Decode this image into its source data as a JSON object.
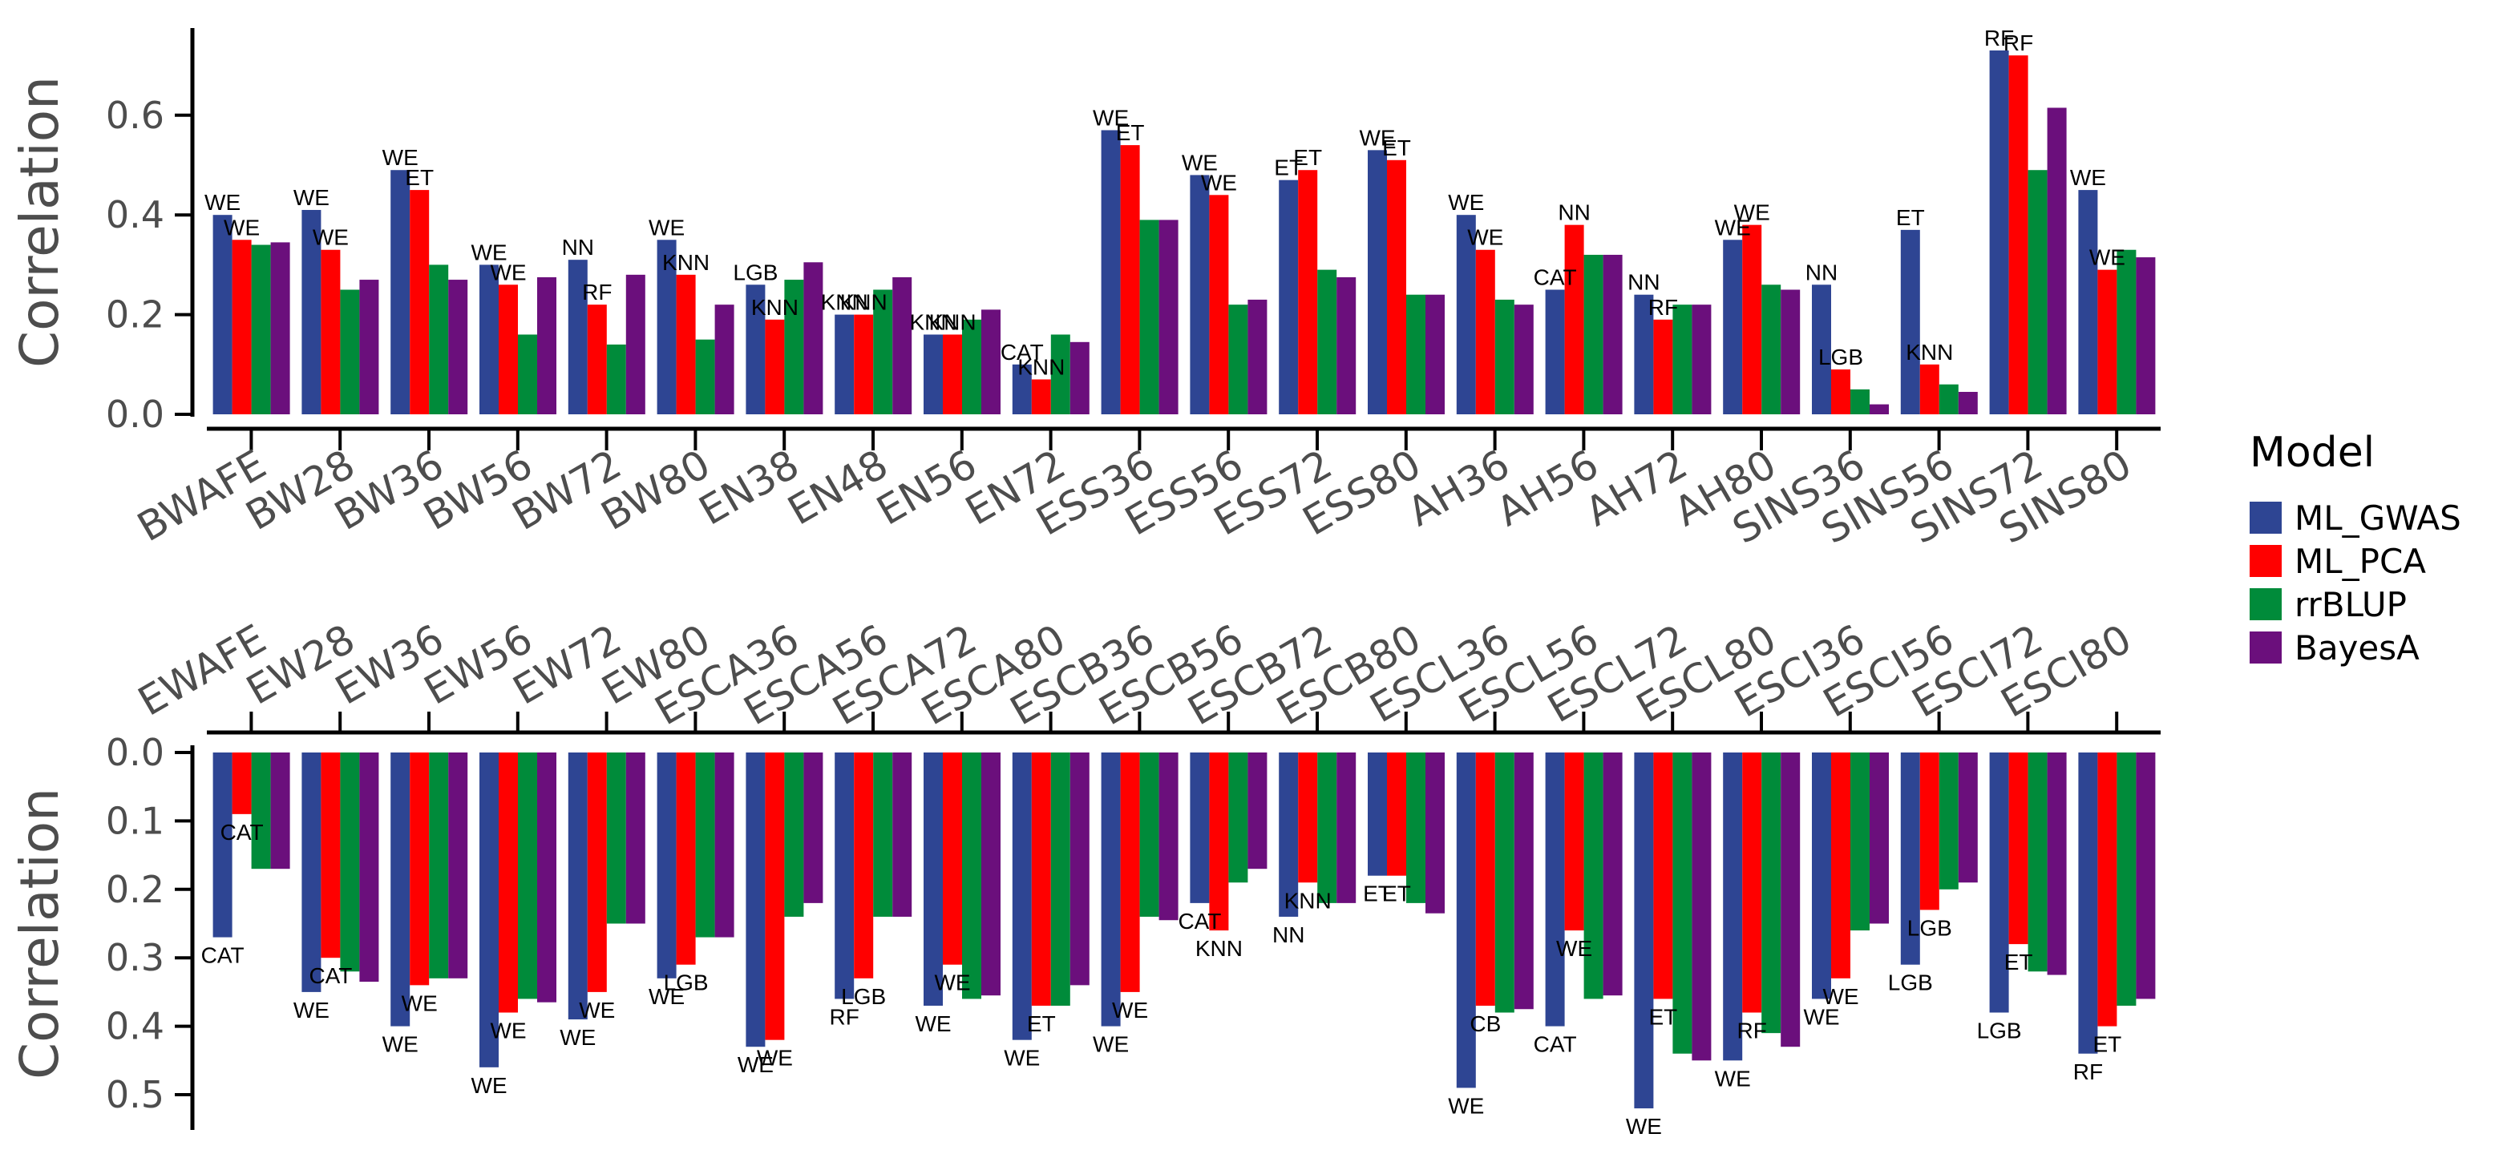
{
  "colors": {
    "ML_GWAS": "#2e4593",
    "ML_PCA": "#ff0000",
    "rrBLUP": "#008b3a",
    "BayesA": "#6b0f7c"
  },
  "legend": {
    "title": "Model",
    "items": [
      "ML_GWAS",
      "ML_PCA",
      "rrBLUP",
      "BayesA"
    ]
  },
  "chart_data": [
    {
      "type": "bar",
      "ylabel": "Correlation",
      "ylim": [
        -0.03,
        0.76
      ],
      "yticks": [
        "0.0",
        "0.2",
        "0.4",
        "0.6"
      ],
      "legend_position": "right",
      "categories": [
        "BWAFE",
        "BW28",
        "BW36",
        "BW56",
        "BW72",
        "BW80",
        "EN38",
        "EN48",
        "EN56",
        "EN72",
        "ESS36",
        "ESS56",
        "ESS72",
        "ESS80",
        "AH36",
        "AH56",
        "AH72",
        "AH80",
        "SINS36",
        "SINS56",
        "SINS72",
        "SINS80"
      ],
      "series": [
        {
          "name": "ML_GWAS",
          "values": [
            0.4,
            0.41,
            0.49,
            0.3,
            0.31,
            0.35,
            0.26,
            0.2,
            0.16,
            0.1,
            0.57,
            0.48,
            0.47,
            0.53,
            0.4,
            0.25,
            0.24,
            0.35,
            0.26,
            0.37,
            0.73,
            0.45
          ]
        },
        {
          "name": "ML_PCA",
          "values": [
            0.35,
            0.33,
            0.45,
            0.26,
            0.22,
            0.28,
            0.19,
            0.2,
            0.16,
            0.07,
            0.54,
            0.44,
            0.49,
            0.51,
            0.33,
            0.38,
            0.19,
            0.38,
            0.09,
            0.1,
            0.72,
            0.29
          ]
        },
        {
          "name": "rrBLUP",
          "values": [
            0.34,
            0.25,
            0.3,
            0.16,
            0.14,
            0.15,
            0.27,
            0.25,
            0.19,
            0.16,
            0.39,
            0.22,
            0.29,
            0.24,
            0.23,
            0.32,
            0.22,
            0.26,
            0.05,
            0.06,
            0.49,
            0.33
          ]
        },
        {
          "name": "BayesA",
          "values": [
            0.345,
            0.27,
            0.27,
            0.275,
            0.28,
            0.22,
            0.305,
            0.275,
            0.21,
            0.145,
            0.39,
            0.23,
            0.275,
            0.24,
            0.22,
            0.32,
            0.22,
            0.25,
            0.02,
            0.045,
            0.615,
            0.315
          ]
        }
      ],
      "annotations": [
        {
          "category": "BWAFE",
          "series": "ML_GWAS",
          "label": "WE"
        },
        {
          "category": "BWAFE",
          "series": "ML_PCA",
          "label": "WE"
        },
        {
          "category": "BW28",
          "series": "ML_GWAS",
          "label": "WE"
        },
        {
          "category": "BW28",
          "series": "ML_PCA",
          "label": "WE"
        },
        {
          "category": "BW36",
          "series": "ML_GWAS",
          "label": "WE"
        },
        {
          "category": "BW36",
          "series": "ML_PCA",
          "label": "ET"
        },
        {
          "category": "BW56",
          "series": "ML_GWAS",
          "label": "WE"
        },
        {
          "category": "BW56",
          "series": "ML_PCA",
          "label": "WE"
        },
        {
          "category": "BW72",
          "series": "ML_GWAS",
          "label": "NN"
        },
        {
          "category": "BW72",
          "series": "ML_PCA",
          "label": "RF"
        },
        {
          "category": "BW80",
          "series": "ML_GWAS",
          "label": "WE"
        },
        {
          "category": "BW80",
          "series": "ML_PCA",
          "label": "KNN"
        },
        {
          "category": "EN38",
          "series": "ML_GWAS",
          "label": "LGB"
        },
        {
          "category": "EN38",
          "series": "ML_PCA",
          "label": "KNN"
        },
        {
          "category": "EN48",
          "series": "ML_GWAS",
          "label": "KNN"
        },
        {
          "category": "EN48",
          "series": "ML_PCA",
          "label": "KNN"
        },
        {
          "category": "EN56",
          "series": "ML_GWAS",
          "label": "KNN"
        },
        {
          "category": "EN56",
          "series": "ML_PCA",
          "label": "KNN"
        },
        {
          "category": "EN72",
          "series": "ML_GWAS",
          "label": "CAT"
        },
        {
          "category": "EN72",
          "series": "ML_PCA",
          "label": "KNN"
        },
        {
          "category": "ESS36",
          "series": "ML_GWAS",
          "label": "WE"
        },
        {
          "category": "ESS36",
          "series": "ML_PCA",
          "label": "ET"
        },
        {
          "category": "ESS56",
          "series": "ML_GWAS",
          "label": "WE"
        },
        {
          "category": "ESS56",
          "series": "ML_PCA",
          "label": "WE"
        },
        {
          "category": "ESS72",
          "series": "ML_GWAS",
          "label": "ET"
        },
        {
          "category": "ESS72",
          "series": "ML_PCA",
          "label": "ET"
        },
        {
          "category": "ESS80",
          "series": "ML_GWAS",
          "label": "WE"
        },
        {
          "category": "ESS80",
          "series": "ML_PCA",
          "label": "ET"
        },
        {
          "category": "AH36",
          "series": "ML_GWAS",
          "label": "WE"
        },
        {
          "category": "AH36",
          "series": "ML_PCA",
          "label": "WE"
        },
        {
          "category": "AH56",
          "series": "ML_GWAS",
          "label": "CAT"
        },
        {
          "category": "AH56",
          "series": "ML_PCA",
          "label": "NN"
        },
        {
          "category": "AH72",
          "series": "ML_GWAS",
          "label": "NN"
        },
        {
          "category": "AH72",
          "series": "ML_PCA",
          "label": "RF"
        },
        {
          "category": "AH80",
          "series": "ML_GWAS",
          "label": "WE"
        },
        {
          "category": "AH80",
          "series": "ML_PCA",
          "label": "WE"
        },
        {
          "category": "SINS36",
          "series": "ML_GWAS",
          "label": "NN"
        },
        {
          "category": "SINS36",
          "series": "ML_PCA",
          "label": "LGB"
        },
        {
          "category": "SINS56",
          "series": "ML_GWAS",
          "label": "ET"
        },
        {
          "category": "SINS56",
          "series": "ML_PCA",
          "label": "KNN"
        },
        {
          "category": "SINS72",
          "series": "ML_GWAS",
          "label": "RF"
        },
        {
          "category": "SINS72",
          "series": "ML_PCA",
          "label": "RF"
        },
        {
          "category": "SINS80",
          "series": "ML_GWAS",
          "label": "WE"
        },
        {
          "category": "SINS80",
          "series": "ML_PCA",
          "label": "WE"
        }
      ]
    },
    {
      "type": "bar",
      "ylabel": "Correlation",
      "ylim": [
        0.0,
        0.55
      ],
      "yaxis_inverted": true,
      "yticks": [
        "0.0",
        "0.1",
        "0.2",
        "0.3",
        "0.4",
        "0.5"
      ],
      "categories": [
        "EWAFE",
        "EW28",
        "EW36",
        "EW56",
        "EW72",
        "EW80",
        "ESCA36",
        "ESCA56",
        "ESCA72",
        "ESCA80",
        "ESCB36",
        "ESCB56",
        "ESCB72",
        "ESCB80",
        "ESCL36",
        "ESCL56",
        "ESCL72",
        "ESCL80",
        "ESCI36",
        "ESCI56",
        "ESCI72",
        "ESCI80"
      ],
      "series": [
        {
          "name": "ML_GWAS",
          "values": [
            0.27,
            0.35,
            0.4,
            0.46,
            0.39,
            0.33,
            0.43,
            0.36,
            0.37,
            0.42,
            0.4,
            0.22,
            0.24,
            0.18,
            0.49,
            0.4,
            0.52,
            0.45,
            0.36,
            0.31,
            0.38,
            0.44
          ]
        },
        {
          "name": "ML_PCA",
          "values": [
            0.09,
            0.3,
            0.34,
            0.38,
            0.35,
            0.31,
            0.42,
            0.33,
            0.31,
            0.37,
            0.35,
            0.26,
            0.19,
            0.18,
            0.37,
            0.26,
            0.36,
            0.38,
            0.33,
            0.23,
            0.28,
            0.4
          ]
        },
        {
          "name": "rrBLUP",
          "values": [
            0.17,
            0.32,
            0.33,
            0.36,
            0.25,
            0.27,
            0.24,
            0.24,
            0.36,
            0.37,
            0.24,
            0.19,
            0.22,
            0.22,
            0.38,
            0.36,
            0.44,
            0.41,
            0.26,
            0.2,
            0.32,
            0.37
          ]
        },
        {
          "name": "BayesA",
          "values": [
            0.17,
            0.335,
            0.33,
            0.365,
            0.25,
            0.27,
            0.22,
            0.24,
            0.355,
            0.34,
            0.245,
            0.17,
            0.22,
            0.235,
            0.375,
            0.355,
            0.45,
            0.43,
            0.25,
            0.19,
            0.325,
            0.36
          ]
        }
      ],
      "annotations": [
        {
          "category": "EWAFE",
          "series": "ML_GWAS",
          "label": "CAT"
        },
        {
          "category": "EWAFE",
          "series": "ML_PCA",
          "label": "CAT"
        },
        {
          "category": "EW28",
          "series": "ML_GWAS",
          "label": "WE"
        },
        {
          "category": "EW28",
          "series": "ML_PCA",
          "label": "CAT"
        },
        {
          "category": "EW36",
          "series": "ML_GWAS",
          "label": "WE"
        },
        {
          "category": "EW36",
          "series": "ML_PCA",
          "label": "WE"
        },
        {
          "category": "EW56",
          "series": "ML_GWAS",
          "label": "WE"
        },
        {
          "category": "EW56",
          "series": "ML_PCA",
          "label": "WE"
        },
        {
          "category": "EW72",
          "series": "ML_GWAS",
          "label": "WE"
        },
        {
          "category": "EW72",
          "series": "ML_PCA",
          "label": "WE"
        },
        {
          "category": "EW80",
          "series": "ML_GWAS",
          "label": "WE"
        },
        {
          "category": "EW80",
          "series": "ML_PCA",
          "label": "LGB"
        },
        {
          "category": "ESCA36",
          "series": "ML_GWAS",
          "label": "WE"
        },
        {
          "category": "ESCA36",
          "series": "ML_PCA",
          "label": "WE"
        },
        {
          "category": "ESCA56",
          "series": "ML_GWAS",
          "label": "RF"
        },
        {
          "category": "ESCA56",
          "series": "ML_PCA",
          "label": "LGB"
        },
        {
          "category": "ESCA72",
          "series": "ML_GWAS",
          "label": "WE"
        },
        {
          "category": "ESCA72",
          "series": "ML_PCA",
          "label": "WE"
        },
        {
          "category": "ESCA80",
          "series": "ML_GWAS",
          "label": "WE"
        },
        {
          "category": "ESCA80",
          "series": "ML_PCA",
          "label": "ET"
        },
        {
          "category": "ESCB36",
          "series": "ML_GWAS",
          "label": "WE"
        },
        {
          "category": "ESCB36",
          "series": "ML_PCA",
          "label": "WE"
        },
        {
          "category": "ESCB56",
          "series": "ML_GWAS",
          "label": "CAT"
        },
        {
          "category": "ESCB56",
          "series": "ML_PCA",
          "label": "KNN"
        },
        {
          "category": "ESCB72",
          "series": "ML_GWAS",
          "label": "NN"
        },
        {
          "category": "ESCB72",
          "series": "ML_PCA",
          "label": "KNN"
        },
        {
          "category": "ESCB80",
          "series": "ML_GWAS",
          "label": "ET"
        },
        {
          "category": "ESCB80",
          "series": "ML_PCA",
          "label": "ET"
        },
        {
          "category": "ESCL36",
          "series": "ML_GWAS",
          "label": "WE"
        },
        {
          "category": "ESCL36",
          "series": "ML_PCA",
          "label": "CB"
        },
        {
          "category": "ESCL56",
          "series": "ML_GWAS",
          "label": "CAT"
        },
        {
          "category": "ESCL56",
          "series": "ML_PCA",
          "label": "WE"
        },
        {
          "category": "ESCL72",
          "series": "ML_GWAS",
          "label": "WE"
        },
        {
          "category": "ESCL72",
          "series": "ML_PCA",
          "label": "ET"
        },
        {
          "category": "ESCL80",
          "series": "ML_GWAS",
          "label": "WE"
        },
        {
          "category": "ESCL80",
          "series": "ML_PCA",
          "label": "RF"
        },
        {
          "category": "ESCI36",
          "series": "ML_GWAS",
          "label": "WE"
        },
        {
          "category": "ESCI36",
          "series": "ML_PCA",
          "label": "WE"
        },
        {
          "category": "ESCI56",
          "series": "ML_GWAS",
          "label": "LGB"
        },
        {
          "category": "ESCI56",
          "series": "ML_PCA",
          "label": "LGB"
        },
        {
          "category": "ESCI72",
          "series": "ML_GWAS",
          "label": "LGB"
        },
        {
          "category": "ESCI72",
          "series": "ML_PCA",
          "label": "ET"
        },
        {
          "category": "ESCI80",
          "series": "ML_GWAS",
          "label": "RF"
        },
        {
          "category": "ESCI80",
          "series": "ML_PCA",
          "label": "ET"
        }
      ]
    }
  ]
}
